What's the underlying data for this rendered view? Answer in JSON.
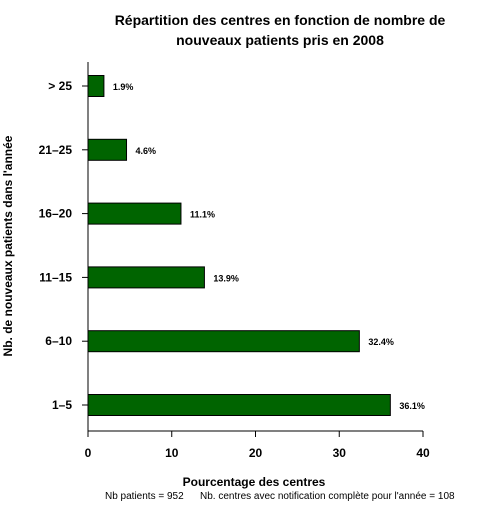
{
  "chart_data": {
    "type": "bar",
    "orientation": "horizontal",
    "title_lines": [
      "Répartition des centres en fonction de nombre de",
      "nouveaux patients pris en 2008"
    ],
    "xlabel": "Pourcentage des centres",
    "ylabel": "Nb. de nouveaux patients dans l'année",
    "categories": [
      "1–5",
      "6–10",
      "11–15",
      "16–20",
      "21–25",
      "> 25"
    ],
    "values": [
      36.1,
      32.4,
      13.9,
      11.1,
      4.6,
      1.9
    ],
    "value_labels": [
      "36.1%",
      "32.4%",
      "13.9%",
      "11.1%",
      "4.6%",
      "1.9%"
    ],
    "xlim": [
      0,
      40
    ],
    "xticks": [
      0,
      10,
      20,
      30,
      40
    ],
    "bar_color": "#006400",
    "grid": false
  },
  "footer": {
    "patients": "Nb patients =  952",
    "centres": "Nb. centres avec notification complète pour l'année =  108"
  }
}
